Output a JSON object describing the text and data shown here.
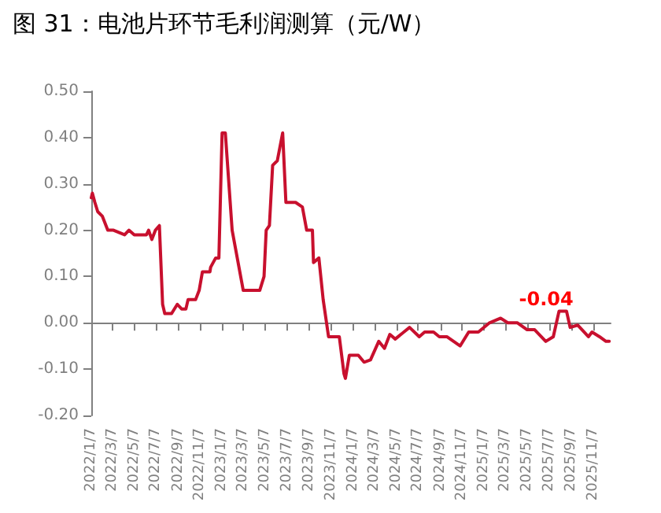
{
  "chart_data": {
    "type": "line",
    "title": "图 31：电池片环节毛利润测算（元/W）",
    "x": [
      "2022-01-07",
      "2022-01-10",
      "2022-01-17",
      "2022-01-25",
      "2022-02-07",
      "2022-02-22",
      "2022-03-10",
      "2022-04-10",
      "2022-04-22",
      "2022-05-07",
      "2022-06-10",
      "2022-06-16",
      "2022-06-25",
      "2022-07-05",
      "2022-07-16",
      "2022-07-25",
      "2022-07-31",
      "2022-08-19",
      "2022-09-04",
      "2022-09-16",
      "2022-09-28",
      "2022-10-04",
      "2022-10-25",
      "2022-11-04",
      "2022-11-13",
      "2022-12-04",
      "2022-12-06",
      "2022-12-20",
      "2022-12-29",
      "2023-01-07",
      "2023-01-16",
      "2023-02-04",
      "2023-03-07",
      "2023-04-22",
      "2023-05-04",
      "2023-05-10",
      "2023-05-19",
      "2023-05-28",
      "2023-06-10",
      "2023-06-25",
      "2023-07-04",
      "2023-07-31",
      "2023-08-19",
      "2023-08-31",
      "2023-09-16",
      "2023-09-19",
      "2023-10-04",
      "2023-10-16",
      "2023-10-31",
      "2023-11-30",
      "2023-12-13",
      "2023-12-17",
      "2023-12-28",
      "2024-01-22",
      "2024-02-07",
      "2024-02-25",
      "2024-03-19",
      "2024-04-04",
      "2024-04-19",
      "2024-05-04",
      "2024-05-28",
      "2024-06-13",
      "2024-07-10",
      "2024-07-25",
      "2024-08-19",
      "2024-09-04",
      "2024-09-25",
      "2024-11-01",
      "2024-11-25",
      "2024-12-22",
      "2025-01-22",
      "2025-02-22",
      "2025-03-14",
      "2025-04-10",
      "2025-05-07",
      "2025-05-28",
      "2025-06-28",
      "2025-07-19",
      "2025-08-04",
      "2025-08-25",
      "2025-09-04",
      "2025-09-25",
      "2025-10-25",
      "2025-11-04",
      "2025-11-25",
      "2025-12-13",
      "2025-12-22"
    ],
    "series": [
      {
        "color": "#c8102e",
        "values": [
          0.27,
          0.28,
          0.26,
          0.24,
          0.23,
          0.2,
          0.2,
          0.19,
          0.2,
          0.19,
          0.19,
          0.2,
          0.18,
          0.2,
          0.21,
          0.04,
          0.02,
          0.02,
          0.04,
          0.03,
          0.03,
          0.05,
          0.05,
          0.07,
          0.11,
          0.11,
          0.12,
          0.14,
          0.14,
          0.41,
          0.41,
          0.2,
          0.07,
          0.07,
          0.1,
          0.2,
          0.21,
          0.34,
          0.35,
          0.41,
          0.26,
          0.26,
          0.25,
          0.2,
          0.2,
          0.13,
          0.14,
          0.05,
          -0.03,
          -0.03,
          -0.11,
          -0.12,
          -0.07,
          -0.07,
          -0.085,
          -0.08,
          -0.04,
          -0.055,
          -0.025,
          -0.035,
          -0.02,
          -0.01,
          -0.03,
          -0.02,
          -0.02,
          -0.03,
          -0.03,
          -0.05,
          -0.02,
          -0.02,
          0.0,
          0.01,
          0.0,
          0.0,
          -0.015,
          -0.015,
          -0.04,
          -0.03,
          0.025,
          0.025,
          -0.01,
          -0.005,
          -0.03,
          -0.02,
          -0.03,
          -0.04,
          -0.04
        ]
      }
    ],
    "annotations": [
      {
        "text": "-0.04",
        "x": "2025-12-22",
        "y": -0.04
      }
    ],
    "xlim": [
      "2022-01-07",
      "2025-12-26"
    ],
    "xticks": [
      {
        "value": "2022-01-07",
        "label": "2022/1/7"
      },
      {
        "value": "2022-03-07",
        "label": "2022/3/7"
      },
      {
        "value": "2022-05-07",
        "label": "2022/5/7"
      },
      {
        "value": "2022-07-07",
        "label": "2022/7/7"
      },
      {
        "value": "2022-09-07",
        "label": "2022/9/7"
      },
      {
        "value": "2022-11-07",
        "label": "2022/11/7"
      },
      {
        "value": "2023-01-07",
        "label": "2023/1/7"
      },
      {
        "value": "2023-03-07",
        "label": "2023/3/7"
      },
      {
        "value": "2023-05-07",
        "label": "2023/5/7"
      },
      {
        "value": "2023-07-07",
        "label": "2023/7/7"
      },
      {
        "value": "2023-09-07",
        "label": "2023/9/7"
      },
      {
        "value": "2023-11-07",
        "label": "2023/11/7"
      },
      {
        "value": "2024-01-07",
        "label": "2024/1/7"
      },
      {
        "value": "2024-03-07",
        "label": "2024/3/7"
      },
      {
        "value": "2024-05-07",
        "label": "2024/5/7"
      },
      {
        "value": "2024-07-07",
        "label": "2024/7/7"
      },
      {
        "value": "2024-09-07",
        "label": "2024/9/7"
      },
      {
        "value": "2024-11-07",
        "label": "2024/11/7"
      },
      {
        "value": "2025-01-07",
        "label": "2025/1/7"
      },
      {
        "value": "2025-03-07",
        "label": "2025/3/7"
      },
      {
        "value": "2025-05-07",
        "label": "2025/5/7"
      },
      {
        "value": "2025-07-07",
        "label": "2025/7/7"
      },
      {
        "value": "2025-09-07",
        "label": "2025/9/7"
      },
      {
        "value": "2025-11-07",
        "label": "2025/11/7"
      }
    ],
    "ylim": [
      -0.2,
      0.5
    ],
    "yticks": [
      {
        "value": -0.2,
        "label": "-0.20"
      },
      {
        "value": -0.1,
        "label": "-0.10"
      },
      {
        "value": 0,
        "label": "0.00"
      },
      {
        "value": 0.1,
        "label": "0.10"
      },
      {
        "value": 0.2,
        "label": "0.20"
      },
      {
        "value": 0.3,
        "label": "0.30"
      },
      {
        "value": 0.4,
        "label": "0.40"
      },
      {
        "value": 0.5,
        "label": "0.50"
      }
    ],
    "marker": "none",
    "line_style": "solid"
  }
}
